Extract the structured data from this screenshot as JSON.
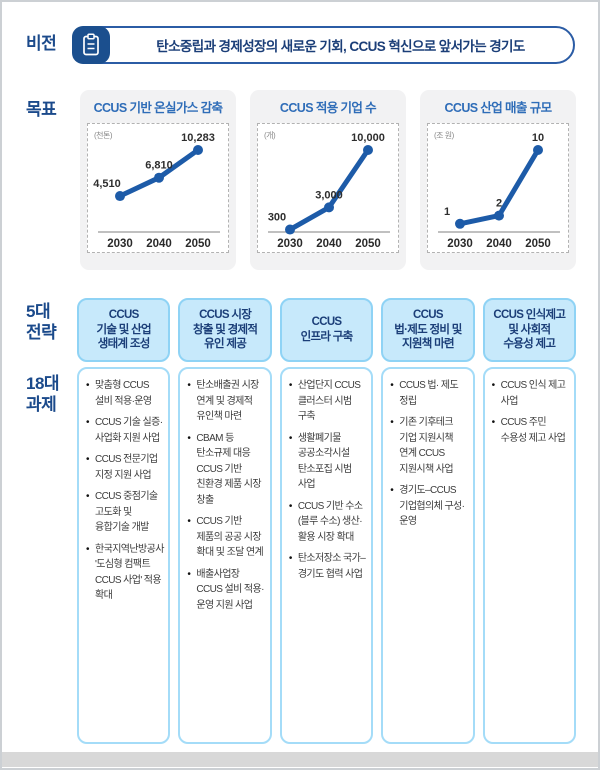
{
  "colors": {
    "navy": "#1b4a8b",
    "pill_border": "#2b5ca5",
    "icon_bg": "#1b4f8e",
    "chart_title_blue": "#2f6db8",
    "line_blue": "#1d5ba8",
    "header_fill": "#c7e9fb",
    "header_border": "#8fd3f5",
    "task_box_border": "#a4dcf8",
    "card_bg": "#f2f2f3",
    "bottom_strip": "#d8d8d8"
  },
  "vision": {
    "label": "비전",
    "icon": "clipboard-icon",
    "text": "탄소중립과 경제성장의 새로운 기회, CCUS 혁신으로 앞서가는 경기도"
  },
  "goals": {
    "label": "목표"
  },
  "chart_data": [
    {
      "type": "line",
      "title": "CCUS 기반 온실가스 감축",
      "unit": "(천톤)",
      "categories": [
        "2030",
        "2040",
        "2050"
      ],
      "values": [
        4510,
        6810,
        10283
      ],
      "labels": [
        "4,510",
        "6,810",
        "10,283"
      ],
      "ylim": [
        0,
        10283
      ],
      "line_color": "#1d5ba8",
      "grid": false,
      "legend": "none"
    },
    {
      "type": "line",
      "title": "CCUS 적용 기업 수",
      "unit": "(개)",
      "categories": [
        "2030",
        "2040",
        "2050"
      ],
      "values": [
        300,
        3000,
        10000
      ],
      "labels": [
        "300",
        "3,000",
        "10,000"
      ],
      "ylim": [
        0,
        10000
      ],
      "line_color": "#1d5ba8",
      "grid": false,
      "legend": "none"
    },
    {
      "type": "line",
      "title": "CCUS 산업 매출 규모",
      "unit": "(조 원)",
      "categories": [
        "2030",
        "2040",
        "2050"
      ],
      "values": [
        1,
        2,
        10
      ],
      "labels": [
        "1",
        "2",
        "10"
      ],
      "ylim": [
        0,
        10
      ],
      "line_color": "#1d5ba8",
      "grid": false,
      "legend": "none"
    }
  ],
  "strategy": {
    "label_top": "5대\n전략",
    "label_bottom": "18대\n과제",
    "columns": [
      {
        "header": "CCUS\n기술 및 산업\n생태계 조성",
        "tasks": [
          "맞춤형 CCUS 설비 적용·운영",
          "CCUS 기술 실증·사업화 지원 사업",
          "CCUS 전문기업 지정 지원 사업",
          "CCUS 중점기술 고도화 및 융합기술 개발",
          "한국지역난방공사 '도심형 컴팩트 CCUS 사업' 적용 확대"
        ]
      },
      {
        "header": "CCUS 시장\n창출 및 경제적\n유인 제공",
        "tasks": [
          "탄소배출권 시장 연계 및 경제적 유인책 마련",
          "CBAM 등 탄소규제 대응 CCUS 기반 친환경 제품 시장 창출",
          "CCUS 기반 제품의 공공 시장 확대 및 조달 연계",
          "배출사업장 CCUS 설비 적용·운영 지원 사업"
        ]
      },
      {
        "header": "CCUS\n인프라 구축",
        "tasks": [
          "산업단지 CCUS 클러스터 시범 구축",
          "생활폐기물 공공소각시설 탄소포집 시범 사업",
          "CCUS 기반 수소(블루 수소) 생산·활용 시장 확대",
          "탄소저장소 국가–경기도 협력 사업"
        ]
      },
      {
        "header": "CCUS\n법·제도 정비 및\n지원책 마련",
        "tasks": [
          "CCUS 법· 제도 정립",
          "기존 기후테크 기업 지원시책 연계 CCUS 지원시책 사업",
          "경기도–CCUS 기업협의체 구성·운영"
        ]
      },
      {
        "header": "CCUS 인식제고\n및 사회적\n수용성 제고",
        "tasks": [
          "CCUS 인식 제고 사업",
          "CCUS 주민 수용성 제고 사업"
        ]
      }
    ]
  }
}
